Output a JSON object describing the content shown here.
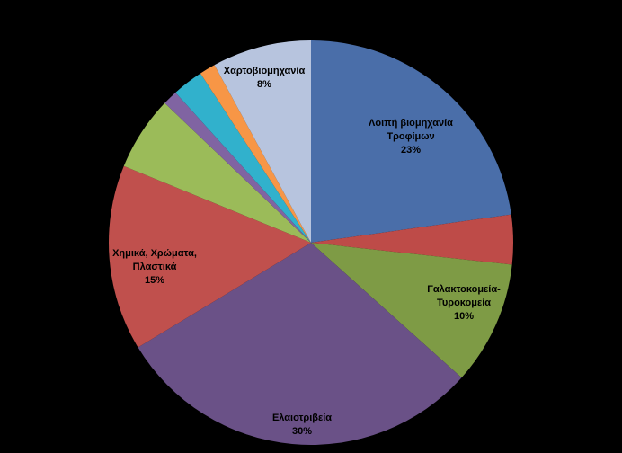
{
  "chart_data": {
    "type": "pie",
    "title": "",
    "slices": [
      {
        "label": "Λοιπή βιομηχανία Τροφίμων",
        "label_lines": [
          "Λοιπή βιομηχανία",
          "Τροφίμων",
          "23%"
        ],
        "value": 23,
        "color": "#4A6EA9"
      },
      {
        "label": "",
        "label_lines": [],
        "value": 4,
        "color": "#BE4B48"
      },
      {
        "label": "Γαλακτοκομεία-Τυροκομεία",
        "label_lines": [
          "Γαλακτοκομεία-",
          "Τυροκομεία",
          "10%"
        ],
        "value": 10,
        "color": "#7E9B45"
      },
      {
        "label": "Ελαιοτριβεία",
        "label_lines": [
          "Ελαιοτριβεία",
          "30%"
        ],
        "value": 30,
        "color": "#6A5187"
      },
      {
        "label": "Χημικά, Χρώματα, Πλαστικά",
        "label_lines": [
          "Χημικά, Χρώματα,",
          "Πλαστικά",
          "15%"
        ],
        "value": 15,
        "color": "#C0504D"
      },
      {
        "label": "",
        "label_lines": [],
        "value": 6,
        "color": "#9BBB59"
      },
      {
        "label": "",
        "label_lines": [],
        "value": 1.2,
        "color": "#8064A2"
      },
      {
        "label": "",
        "label_lines": [],
        "value": 2.5,
        "color": "#31B1CC"
      },
      {
        "label": "",
        "label_lines": [],
        "value": 1.3,
        "color": "#F79646"
      },
      {
        "label": "Χαρτοβιομηχανία",
        "label_lines": [
          "Χαρτοβιομηχανία",
          "8%"
        ],
        "value": 8,
        "color": "#B7C4DE"
      }
    ],
    "start_angle_deg": 0,
    "direction": "clockwise",
    "legend": "none",
    "background": "#000000"
  }
}
